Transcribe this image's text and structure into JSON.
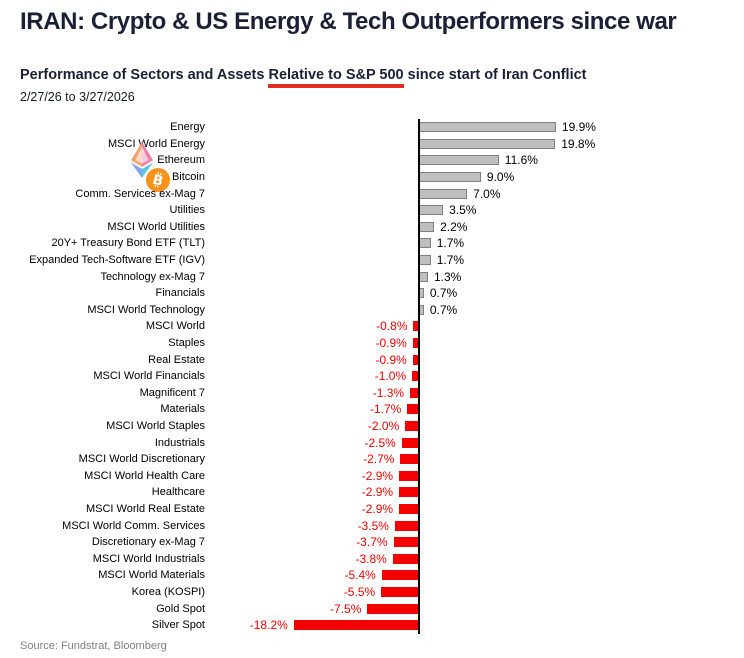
{
  "header": {
    "title": "IRAN: Crypto & US Energy & Tech Outperformers since war",
    "subtitle": {
      "prefix": "Performance of Sectors and Assets ",
      "underlined": "Relative to S&P 500",
      "suffix": " since start of Iran Conflict"
    },
    "date_range": "2/27/26 to 3/27/2026"
  },
  "footer": {
    "source": "Source: Fundstrat, Bloomberg"
  },
  "colors": {
    "heading_navy": "#1A2035",
    "underline_red": "#E0301E",
    "positive_bar_fill": "#BFBFBF",
    "positive_bar_border": "#7F7F7F",
    "negative_bar_fill": "#F40000",
    "negative_value_text": "#F40000",
    "bitcoin_orange": "#F7931A",
    "source_gray": "#808080",
    "ethereum_palette": "#F5A271 #EE7FA9 #7FA8F0 #5FC8DD"
  },
  "chart_data": {
    "type": "bar",
    "orientation": "horizontal",
    "title": "Performance of Sectors and Assets Relative to S&P 500 since start of Iran Conflict",
    "xlabel": "",
    "ylabel": "",
    "value_unit": "percent",
    "xlim": [
      -20,
      22
    ],
    "grid": false,
    "legend": false,
    "rows": [
      {
        "label": "Energy",
        "value": 19.9,
        "value_label": "19.9%"
      },
      {
        "label": "MSCI World Energy",
        "value": 19.8,
        "value_label": "19.8%"
      },
      {
        "label": "Ethereum",
        "value": 11.6,
        "value_label": "11.6%",
        "icon": "ethereum-icon"
      },
      {
        "label": "Bitcoin",
        "value": 9.0,
        "value_label": "9.0%",
        "icon": "bitcoin-icon"
      },
      {
        "label": "Comm. Services ex-Mag 7",
        "value": 7.0,
        "value_label": "7.0%"
      },
      {
        "label": "Utilities",
        "value": 3.5,
        "value_label": "3.5%"
      },
      {
        "label": "MSCI World Utilities",
        "value": 2.2,
        "value_label": "2.2%"
      },
      {
        "label": "20Y+ Treasury Bond ETF (TLT)",
        "value": 1.7,
        "value_label": "1.7%"
      },
      {
        "label": "Expanded Tech-Software ETF (IGV)",
        "value": 1.7,
        "value_label": "1.7%"
      },
      {
        "label": "Technology ex-Mag 7",
        "value": 1.3,
        "value_label": "1.3%"
      },
      {
        "label": "Financials",
        "value": 0.7,
        "value_label": "0.7%"
      },
      {
        "label": "MSCI World Technology",
        "value": 0.7,
        "value_label": "0.7%"
      },
      {
        "label": "MSCI World",
        "value": -0.8,
        "value_label": "-0.8%"
      },
      {
        "label": "Staples",
        "value": -0.9,
        "value_label": "-0.9%"
      },
      {
        "label": "Real Estate",
        "value": -0.9,
        "value_label": "-0.9%"
      },
      {
        "label": "MSCI World Financials",
        "value": -1.0,
        "value_label": "-1.0%"
      },
      {
        "label": "Magnificent 7",
        "value": -1.3,
        "value_label": "-1.3%"
      },
      {
        "label": "Materials",
        "value": -1.7,
        "value_label": "-1.7%"
      },
      {
        "label": "MSCI World Staples",
        "value": -2.0,
        "value_label": "-2.0%"
      },
      {
        "label": "Industrials",
        "value": -2.5,
        "value_label": "-2.5%"
      },
      {
        "label": "MSCI World Discretionary",
        "value": -2.7,
        "value_label": "-2.7%"
      },
      {
        "label": "MSCI World Health Care",
        "value": -2.9,
        "value_label": "-2.9%"
      },
      {
        "label": "Healthcare",
        "value": -2.9,
        "value_label": "-2.9%"
      },
      {
        "label": "MSCI World Real Estate",
        "value": -2.9,
        "value_label": "-2.9%"
      },
      {
        "label": "MSCI World Comm. Services",
        "value": -3.5,
        "value_label": "-3.5%"
      },
      {
        "label": "Discretionary ex-Mag 7",
        "value": -3.7,
        "value_label": "-3.7%"
      },
      {
        "label": "MSCI World Industrials",
        "value": -3.8,
        "value_label": "-3.8%"
      },
      {
        "label": "MSCI World Materials",
        "value": -5.4,
        "value_label": "-5.4%"
      },
      {
        "label": "Korea (KOSPI)",
        "value": -5.5,
        "value_label": "-5.5%"
      },
      {
        "label": "Gold Spot",
        "value": -7.5,
        "value_label": "-7.5%"
      },
      {
        "label": "Silver Spot",
        "value": -18.2,
        "value_label": "-18.2%"
      }
    ]
  }
}
